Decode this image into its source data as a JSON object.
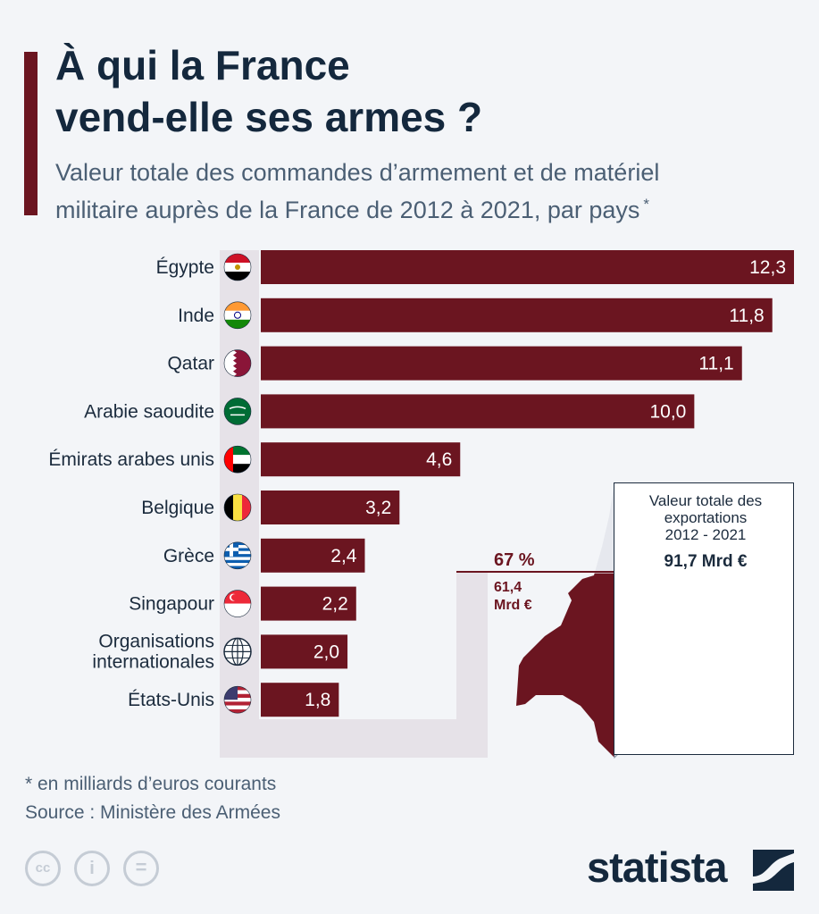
{
  "header": {
    "title_line1": "À qui la France",
    "title_line2": "vend-elle ses armes ?",
    "subtitle_line1": "Valeur totale des commandes d’armement et de matériel",
    "subtitle_line2": "militaire auprès de la France de 2012 à 2021, par pays",
    "subtitle_mark": "*"
  },
  "chart_data": {
    "type": "bar",
    "orientation": "horizontal",
    "title": "À qui la France vend-elle ses armes ?",
    "unit": "milliards d’euros courants",
    "xlim": [
      0,
      12.3
    ],
    "categories": [
      "Égypte",
      "Inde",
      "Qatar",
      "Arabie saoudite",
      "Émirats arabes unis",
      "Belgique",
      "Grèce",
      "Singapour",
      "Organisations internationales",
      "États-Unis"
    ],
    "category_lines": [
      [
        "Égypte"
      ],
      [
        "Inde"
      ],
      [
        "Qatar"
      ],
      [
        "Arabie saoudite"
      ],
      [
        "Émirats arabes unis"
      ],
      [
        "Belgique"
      ],
      [
        "Grèce"
      ],
      [
        "Singapour"
      ],
      [
        "Organisations",
        "internationales"
      ],
      [
        "États-Unis"
      ]
    ],
    "values": [
      12.3,
      11.8,
      11.1,
      10.0,
      4.6,
      3.2,
      2.4,
      2.2,
      2.0,
      1.8
    ],
    "value_labels": [
      "12,3",
      "11,8",
      "11,1",
      "10,0",
      "4,6",
      "3,2",
      "2,4",
      "2,2",
      "2,0",
      "1,8"
    ],
    "flags": [
      "flag-egypt",
      "flag-india",
      "flag-qatar",
      "flag-saudi-arabia",
      "flag-uae",
      "flag-belgium",
      "flag-greece",
      "flag-singapore",
      "globe",
      "flag-usa"
    ],
    "bar_color": "#6b1520"
  },
  "share": {
    "percent": "67 %",
    "amount_line1": "61,4",
    "amount_line2": "Mrd €",
    "fraction": 0.67
  },
  "total_box": {
    "label_line1": "Valeur totale des",
    "label_line2": "exportations",
    "label_line3": "2012 - 2021",
    "value": "91,7 Mrd €"
  },
  "footer": {
    "footnote": "* en milliards d’euros courants",
    "source": "Source : Ministère des Armées",
    "license_icons": [
      "cc-icon",
      "attribution-icon",
      "no-derivatives-icon"
    ],
    "license_glyphs": [
      "cc",
      "i",
      "="
    ],
    "brand": "statista"
  },
  "colors": {
    "accent": "#6b1520",
    "text": "#1b2b3d",
    "background": "#f3f5f8"
  }
}
